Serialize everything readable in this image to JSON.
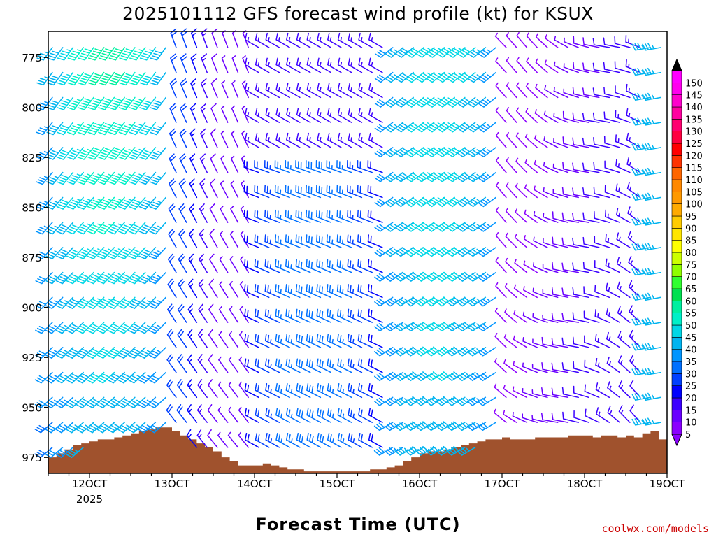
{
  "chart_data": {
    "type": "wind-barb-time-height",
    "title": "2025101112 GFS forecast wind profile (kt) for KSUX",
    "xlabel": "Forecast Time (UTC)",
    "credit": "coolwx.com/models",
    "x_ticks": [
      "12OCT",
      "13OCT",
      "14OCT",
      "15OCT",
      "16OCT",
      "17OCT",
      "18OCT",
      "19OCT"
    ],
    "x_tick_year": "2025",
    "x_range_days": [
      11.5,
      19.0
    ],
    "y_ticks": [
      "775",
      "800",
      "825",
      "850",
      "875",
      "900",
      "925",
      "950",
      "975"
    ],
    "y_range_hpa": [
      762,
      983
    ],
    "colorbar_levels": [
      "5",
      "10",
      "15",
      "20",
      "25",
      "30",
      "35",
      "40",
      "45",
      "50",
      "55",
      "60",
      "65",
      "70",
      "75",
      "80",
      "85",
      "90",
      "95",
      "100",
      "105",
      "110",
      "115",
      "120",
      "125",
      "130",
      "135",
      "140",
      "145",
      "150"
    ],
    "colorbar_colors": [
      "#8b00ff",
      "#6a00ff",
      "#3b00ff",
      "#0000ff",
      "#0040ff",
      "#0070ff",
      "#0095ff",
      "#00b4f0",
      "#00d7e6",
      "#00f0c8",
      "#00f0a0",
      "#00e050",
      "#30ff30",
      "#90ff00",
      "#ccff00",
      "#ffff00",
      "#ffe600",
      "#ffcc00",
      "#ffaa00",
      "#ff9900",
      "#ff8800",
      "#ff6600",
      "#ff3300",
      "#ff0000",
      "#ff0040",
      "#ff0070",
      "#ff00a0",
      "#ff00cc",
      "#ff00ee",
      "#ff00ff"
    ],
    "terrain_color": "#a0522d",
    "terrain_pressure_hpa": [
      [
        11.5,
        975
      ],
      [
        11.6,
        973
      ],
      [
        11.7,
        971
      ],
      [
        11.8,
        969
      ],
      [
        11.9,
        968
      ],
      [
        12.0,
        967
      ],
      [
        12.1,
        966
      ],
      [
        12.2,
        966
      ],
      [
        12.3,
        965
      ],
      [
        12.4,
        964
      ],
      [
        12.5,
        963
      ],
      [
        12.6,
        962
      ],
      [
        12.7,
        961
      ],
      [
        12.8,
        960
      ],
      [
        12.9,
        960
      ],
      [
        13.0,
        962
      ],
      [
        13.1,
        964
      ],
      [
        13.2,
        966
      ],
      [
        13.3,
        968
      ],
      [
        13.4,
        970
      ],
      [
        13.5,
        972
      ],
      [
        13.6,
        975
      ],
      [
        13.7,
        977
      ],
      [
        13.8,
        979
      ],
      [
        13.9,
        979
      ],
      [
        14.0,
        979
      ],
      [
        14.1,
        978
      ],
      [
        14.2,
        979
      ],
      [
        14.3,
        980
      ],
      [
        14.4,
        981
      ],
      [
        14.5,
        981
      ],
      [
        14.6,
        982
      ],
      [
        14.7,
        982
      ],
      [
        14.8,
        982
      ],
      [
        14.9,
        982
      ],
      [
        15.0,
        982
      ],
      [
        15.1,
        982
      ],
      [
        15.2,
        982
      ],
      [
        15.3,
        982
      ],
      [
        15.4,
        981
      ],
      [
        15.5,
        981
      ],
      [
        15.6,
        980
      ],
      [
        15.7,
        979
      ],
      [
        15.8,
        977
      ],
      [
        15.9,
        975
      ],
      [
        16.0,
        973
      ],
      [
        16.1,
        972
      ],
      [
        16.2,
        972
      ],
      [
        16.3,
        971
      ],
      [
        16.4,
        970
      ],
      [
        16.5,
        969
      ],
      [
        16.6,
        968
      ],
      [
        16.7,
        967
      ],
      [
        16.8,
        966
      ],
      [
        16.9,
        966
      ],
      [
        17.0,
        965
      ],
      [
        17.1,
        966
      ],
      [
        17.2,
        966
      ],
      [
        17.3,
        966
      ],
      [
        17.4,
        965
      ],
      [
        17.5,
        965
      ],
      [
        17.6,
        965
      ],
      [
        17.7,
        965
      ],
      [
        17.8,
        964
      ],
      [
        17.9,
        964
      ],
      [
        18.0,
        964
      ],
      [
        18.1,
        965
      ],
      [
        18.2,
        964
      ],
      [
        18.3,
        964
      ],
      [
        18.4,
        965
      ],
      [
        18.5,
        964
      ],
      [
        18.6,
        965
      ],
      [
        18.7,
        963
      ],
      [
        18.8,
        962
      ],
      [
        18.9,
        966
      ],
      [
        19.0,
        966
      ]
    ],
    "wind_field_pattern": [
      {
        "region": "11.5-13.0 days, all levels",
        "direction_deg": 220,
        "speed_kt": [
          25,
          45
        ]
      },
      {
        "region": "13.0-14.0 days, mid levels",
        "direction_deg": 340,
        "speed_kt": [
          10,
          25
        ]
      },
      {
        "region": "14.0-15.5 days, low levels",
        "direction_deg": 290,
        "speed_kt": [
          15,
          30
        ]
      },
      {
        "region": "15.5-17.0 days, all levels",
        "direction_deg": 230,
        "speed_kt": [
          25,
          45
        ]
      },
      {
        "region": "17.0-18.8 days, all levels",
        "direction_deg": 300,
        "speed_kt": [
          5,
          15
        ]
      },
      {
        "region": "18.8-19.0 days, all levels",
        "direction_deg": 260,
        "speed_kt": [
          30,
          40
        ]
      }
    ]
  }
}
